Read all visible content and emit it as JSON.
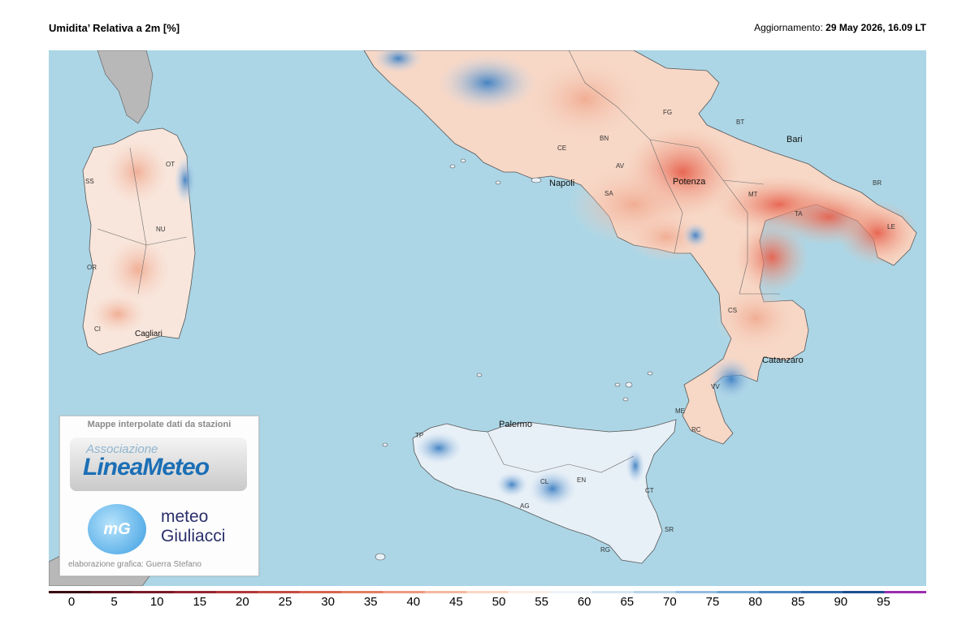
{
  "header": {
    "title": "Umidita’ Relativa a 2m [%]",
    "update_label": "Aggiornamento:",
    "update_value": "29 May 2026, 16.09 LT"
  },
  "map": {
    "cities": [
      "Bari",
      "Potenza",
      "Napoli",
      "Catanzaro",
      "Palermo",
      "Cagliari"
    ],
    "provinces": [
      "FG",
      "BT",
      "BR",
      "LE",
      "TA",
      "MT",
      "BN",
      "CE",
      "AV",
      "SA",
      "CS",
      "VV",
      "RC",
      "ME",
      "CT",
      "SR",
      "RG",
      "EN",
      "CL",
      "AG",
      "TP",
      "SS",
      "OT",
      "NU",
      "OR",
      "CI"
    ]
  },
  "logo": {
    "caption": "Mappe interpolate dati da stazioni",
    "assoc_top": "Associazione",
    "assoc_main": "LineaMeteo",
    "mg_initials": "mG",
    "mg_name_line1": "meteo",
    "mg_name_line2": "Giuliacci",
    "credit": "elaborazione grafica: Guerra Stefano"
  },
  "colorbar": {
    "ticks": [
      "0",
      "5",
      "10",
      "15",
      "20",
      "25",
      "30",
      "35",
      "40",
      "45",
      "50",
      "55",
      "60",
      "65",
      "70",
      "75",
      "80",
      "85",
      "90",
      "95"
    ],
    "colors": [
      "#3a0a12",
      "#5c1220",
      "#7a1a28",
      "#952631",
      "#b0383a",
      "#c44c44",
      "#d66550",
      "#e27d63",
      "#ec9a7f",
      "#f3b89f",
      "#f8d6c4",
      "#fbeee6",
      "#eef3f8",
      "#d5e5f1",
      "#b7d3ea",
      "#93bde0",
      "#6ea4d2",
      "#4a87c0",
      "#2f6aa9",
      "#1e4f8e",
      "#9b2fae"
    ]
  }
}
